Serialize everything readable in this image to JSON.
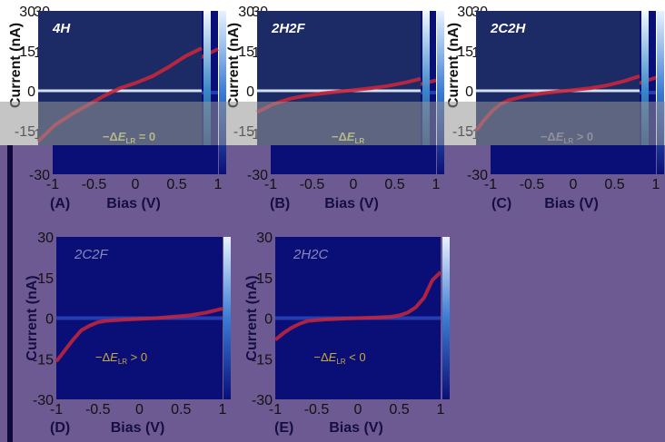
{
  "figure": {
    "background_color": "#6e5a93",
    "plot_bg_color": "#0a0f78",
    "top_plot_bg_color": "#1c2a66",
    "curve_color": "#c8263a",
    "colorbar_colors": [
      "#0a0f78",
      "#3a7bd5",
      "#e8f2ff"
    ]
  },
  "chart_data": [
    {
      "type": "line",
      "panel_label": "(A)",
      "title": "4H",
      "annotation": "−ΔE_LR = 0",
      "annotation_main": "−Δ",
      "annotation_e": "E",
      "annotation_sub": "LR",
      "annotation_rel": "= 0",
      "annotation_color": "#d8e27a",
      "xlabel": "Bias (V)",
      "ylabel": "Current (nA)",
      "xlim": [
        -1,
        1
      ],
      "ylim": [
        -30,
        30
      ],
      "xticks": [
        "-1",
        "-0.5",
        "0",
        "0.5",
        "1"
      ],
      "yticks": [
        "30",
        "15",
        "0",
        "-15",
        "-30"
      ],
      "x": [
        -1,
        -0.9,
        -0.8,
        -0.6,
        -0.4,
        -0.2,
        -0.1,
        0,
        0.2,
        0.4,
        0.6,
        0.8,
        1
      ],
      "y": [
        -19,
        -16,
        -13,
        -9,
        -5.5,
        -2,
        -0.5,
        1,
        3,
        5.5,
        9,
        13,
        16
      ]
    },
    {
      "type": "line",
      "panel_label": "(B)",
      "title": "2H2F",
      "annotation": "−ΔE_LR",
      "annotation_main": "−Δ",
      "annotation_e": "E",
      "annotation_sub": "LR",
      "annotation_rel": "",
      "annotation_color": "#d8e27a",
      "xlabel": "Bias (V)",
      "ylabel": "Current (nA)",
      "xlim": [
        -1,
        1
      ],
      "ylim": [
        -30,
        30
      ],
      "xticks": [
        "-1",
        "-0.5",
        "0",
        "0.5",
        "1"
      ],
      "yticks": [
        "30",
        "15",
        "0",
        "-15",
        "-30"
      ],
      "x": [
        -1,
        -0.8,
        -0.6,
        -0.4,
        -0.2,
        0,
        0.2,
        0.4,
        0.6,
        0.8,
        1
      ],
      "y": [
        -8,
        -5,
        -3,
        -1.8,
        -1,
        -0.3,
        0.3,
        1,
        1.8,
        3,
        4.5
      ]
    },
    {
      "type": "line",
      "panel_label": "(C)",
      "title": "2C2H",
      "annotation": "−ΔE_LR > 0",
      "annotation_main": "−Δ",
      "annotation_e": "E",
      "annotation_sub": "LR",
      "annotation_rel": "> 0",
      "annotation_color": "#8f8aa8",
      "xlabel": "Bias (V)",
      "ylabel": "Current (nA)",
      "xlim": [
        -1,
        1
      ],
      "ylim": [
        -30,
        30
      ],
      "xticks": [
        "-1",
        "-0.5",
        "0",
        "0.5",
        "1"
      ],
      "yticks": [
        "30",
        "15",
        "0",
        "-15",
        "-30"
      ],
      "x": [
        -1,
        -0.9,
        -0.8,
        -0.7,
        -0.6,
        -0.4,
        -0.2,
        0,
        0.2,
        0.4,
        0.6,
        0.8,
        1
      ],
      "y": [
        -15,
        -11,
        -7.5,
        -5,
        -3.5,
        -2,
        -1,
        -0.3,
        0.3,
        1,
        2,
        3.5,
        5.5
      ]
    },
    {
      "type": "line",
      "panel_label": "(D)",
      "title": "2C2F",
      "annotation": "−ΔE_LR > 0",
      "annotation_main": "−Δ",
      "annotation_e": "E",
      "annotation_sub": "LR",
      "annotation_rel": "> 0",
      "annotation_color": "#c9a93a",
      "xlabel": "Bias (V)",
      "ylabel": "Current (nA)",
      "xlim": [
        -1,
        1
      ],
      "ylim": [
        -30,
        30
      ],
      "xticks": [
        "-1",
        "-0.5",
        "0",
        "0.5",
        "1"
      ],
      "yticks": [
        "30",
        "15",
        "0",
        "-15",
        "-30"
      ],
      "x": [
        -1,
        -0.9,
        -0.8,
        -0.7,
        -0.6,
        -0.5,
        -0.4,
        -0.2,
        0,
        0.2,
        0.4,
        0.6,
        0.8,
        1
      ],
      "y": [
        -16,
        -12,
        -8,
        -4.5,
        -2.8,
        -1.5,
        -1,
        -0.6,
        -0.3,
        0,
        0.5,
        1,
        2,
        3.5
      ]
    },
    {
      "type": "line",
      "panel_label": "(E)",
      "title": "2H2C",
      "annotation": "−ΔE_LR < 0",
      "annotation_main": "−Δ",
      "annotation_e": "E",
      "annotation_sub": "LR",
      "annotation_rel": "< 0",
      "annotation_color": "#c9a93a",
      "xlabel": "Bias (V)",
      "ylabel": "Current (nA)",
      "xlim": [
        -1,
        1
      ],
      "ylim": [
        -30,
        30
      ],
      "xticks": [
        "-1",
        "-0.5",
        "0",
        "0.5",
        "1"
      ],
      "yticks": [
        "30",
        "15",
        "0",
        "-15",
        "-30"
      ],
      "x": [
        -1,
        -0.9,
        -0.8,
        -0.7,
        -0.6,
        -0.4,
        -0.2,
        0,
        0.2,
        0.4,
        0.5,
        0.6,
        0.7,
        0.8,
        0.9,
        1
      ],
      "y": [
        -8,
        -5.5,
        -3.5,
        -2,
        -1,
        -0.5,
        -0.2,
        0,
        0.2,
        0.5,
        1,
        2,
        4,
        7.5,
        14,
        17
      ]
    }
  ]
}
